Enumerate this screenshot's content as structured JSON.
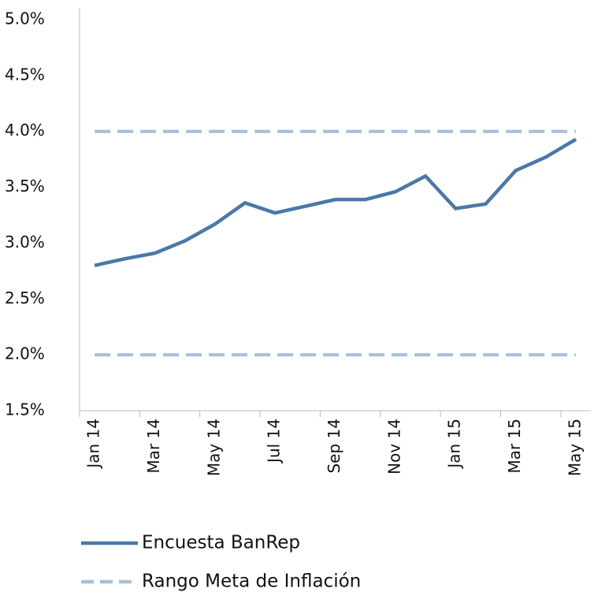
{
  "chart_data": {
    "type": "line",
    "categories": [
      "Jan 14",
      null,
      "Mar 14",
      null,
      "May 14",
      null,
      "Jul 14",
      null,
      "Sep 14",
      null,
      "Nov 14",
      null,
      "Jan 15",
      null,
      "Mar 15",
      null,
      "May 15"
    ],
    "series": [
      {
        "name": "Encuesta BanRep",
        "color": "#4a78a8",
        "values": [
          2.8,
          2.86,
          2.91,
          3.02,
          3.17,
          3.36,
          3.27,
          3.33,
          3.39,
          3.39,
          3.46,
          3.6,
          3.31,
          3.35,
          3.65,
          3.77,
          3.93
        ]
      },
      {
        "name": "Rango Meta de Inflación",
        "color": "#a6bfdc",
        "dashed": true,
        "values": [
          4.0,
          4.0,
          4.0,
          4.0,
          4.0,
          4.0,
          4.0,
          4.0,
          4.0,
          4.0,
          4.0,
          4.0,
          4.0,
          4.0,
          4.0,
          4.0,
          4.0
        ]
      },
      {
        "color": "#a6bfdc",
        "dashed": true,
        "values": [
          2.0,
          2.0,
          2.0,
          2.0,
          2.0,
          2.0,
          2.0,
          2.0,
          2.0,
          2.0,
          2.0,
          2.0,
          2.0,
          2.0,
          2.0,
          2.0,
          2.0
        ]
      }
    ],
    "ylim": [
      1.5,
      5.0
    ],
    "yticks": [
      {
        "value": 1.5,
        "label": "1.5%"
      },
      {
        "value": 2.0,
        "label": "2.0%"
      },
      {
        "value": 2.5,
        "label": "2.5%"
      },
      {
        "value": 3.0,
        "label": "3.0%"
      },
      {
        "value": 3.5,
        "label": "3.5%"
      },
      {
        "value": 4.0,
        "label": "4.0%"
      },
      {
        "value": 4.5,
        "label": "4.5%"
      },
      {
        "value": 5.0,
        "label": "5.0%"
      }
    ],
    "grid": false,
    "legend": "bottom"
  }
}
